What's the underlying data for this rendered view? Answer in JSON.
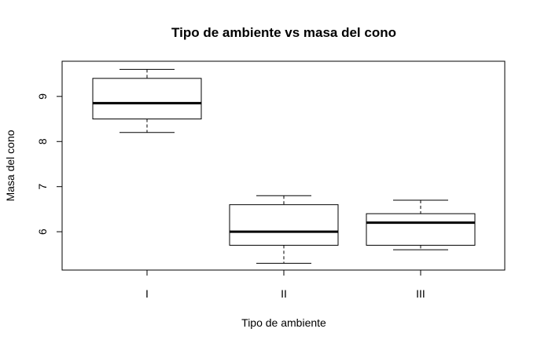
{
  "chart_data": {
    "type": "boxplot",
    "title": "Tipo de ambiente vs masa del cono",
    "xlabel": "Tipo de ambiente",
    "ylabel": "Masa del cono",
    "categories": [
      "I",
      "II",
      "III"
    ],
    "boxes": [
      {
        "category": "I",
        "min": 8.2,
        "q1": 8.5,
        "median": 8.85,
        "q3": 9.4,
        "max": 9.6
      },
      {
        "category": "II",
        "min": 5.3,
        "q1": 5.7,
        "median": 6.0,
        "q3": 6.6,
        "max": 6.8
      },
      {
        "category": "III",
        "min": 5.6,
        "q1": 5.7,
        "median": 6.2,
        "q3": 6.4,
        "max": 6.7
      }
    ],
    "ylim": [
      5.15,
      9.78
    ],
    "y_ticks": [
      "6",
      "7",
      "8",
      "9"
    ],
    "grid": false,
    "legend": "none"
  }
}
